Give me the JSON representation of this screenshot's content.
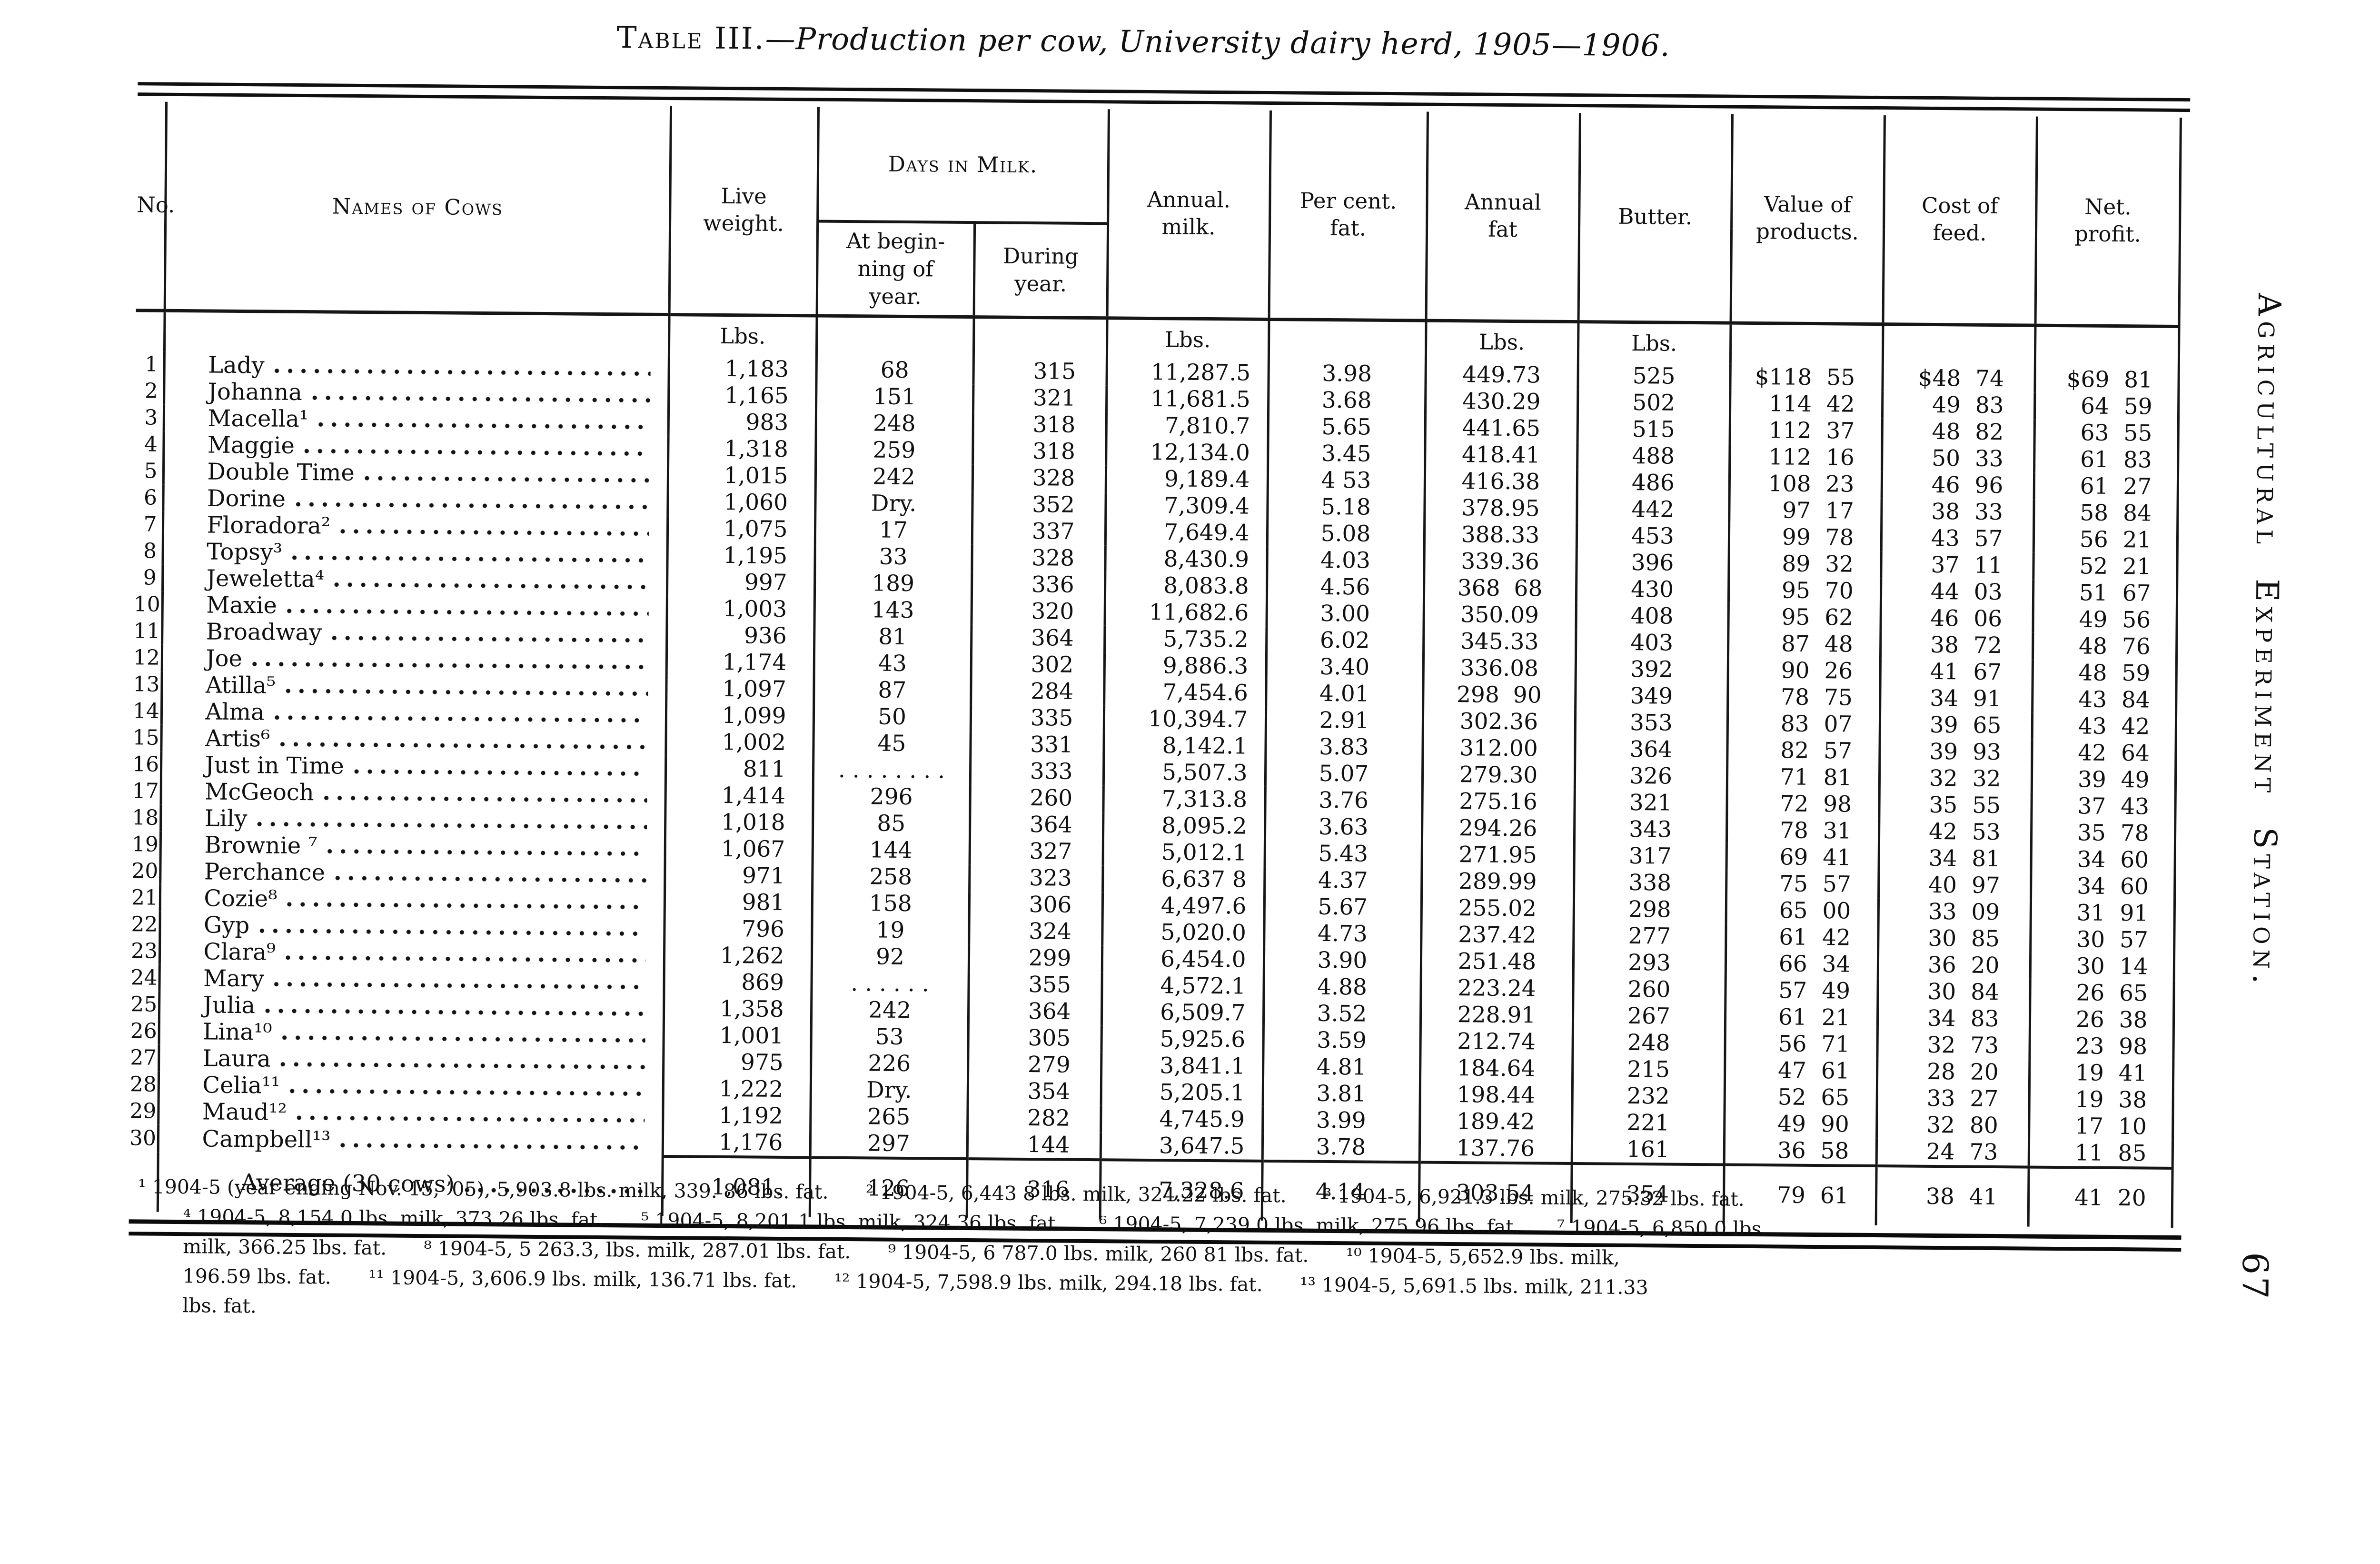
{
  "page": {
    "title_prefix": "Table III.",
    "title_rest": "—Production per cow, University dairy herd, 1905—1906.",
    "side_text": "Agricultural Experiment Station.",
    "page_number": "67"
  },
  "table": {
    "headers": {
      "no": "No.",
      "names": "Names of Cows",
      "live_weight": "Live\nweight.",
      "days_in_milk": "Days in Milk.",
      "at_beginning": "At begin-\nning of\nyear.",
      "during_year": "During\nyear.",
      "annual_milk": "Annual.\nmilk.",
      "per_cent_fat": "Per cent.\nfat.",
      "annual_fat": "Annual\nfat",
      "butter": "Butter.",
      "value_of_products": "Value of\nproducts.",
      "cost_of_feed": "Cost of\nfeed.",
      "net_profit": "Net.\nprofit."
    },
    "unit": "Lbs.",
    "average_label": "Average (30 cows)",
    "rows": [
      {
        "no": "1",
        "name": "Lady",
        "live": "1,183",
        "begin": "68",
        "during": "315",
        "milk": "11,287.5",
        "pct": "3.98",
        "fat": "449.73",
        "butter": "525",
        "value": "$118 55",
        "cost": "$48 74",
        "profit": "$69 81"
      },
      {
        "no": "2",
        "name": "Johanna",
        "live": "1,165",
        "begin": "151",
        "during": "321",
        "milk": "11,681.5",
        "pct": "3.68",
        "fat": "430.29",
        "butter": "502",
        "value": "114 42",
        "cost": "49 83",
        "profit": "64 59"
      },
      {
        "no": "3",
        "name": "Macella¹",
        "live": "983",
        "begin": "248",
        "during": "318",
        "milk": "7,810.7",
        "pct": "5.65",
        "fat": "441.65",
        "butter": "515",
        "value": "112 37",
        "cost": "48 82",
        "profit": "63 55"
      },
      {
        "no": "4",
        "name": "Maggie",
        "live": "1,318",
        "begin": "259",
        "during": "318",
        "milk": "12,134.0",
        "pct": "3.45",
        "fat": "418.41",
        "butter": "488",
        "value": "112 16",
        "cost": "50 33",
        "profit": "61 83"
      },
      {
        "no": "5",
        "name": "Double Time",
        "live": "1,015",
        "begin": "242",
        "during": "328",
        "milk": "9,189.4",
        "pct": "4 53",
        "fat": "416.38",
        "butter": "486",
        "value": "108 23",
        "cost": "46 96",
        "profit": "61 27"
      },
      {
        "no": "6",
        "name": "Dorine",
        "live": "1,060",
        "begin": "Dry.",
        "during": "352",
        "milk": "7,309.4",
        "pct": "5.18",
        "fat": "378.95",
        "butter": "442",
        "value": "97 17",
        "cost": "38 33",
        "profit": "58 84"
      },
      {
        "no": "7",
        "name": "Floradora²",
        "live": "1,075",
        "begin": "17",
        "during": "337",
        "milk": "7,649.4",
        "pct": "5.08",
        "fat": "388.33",
        "butter": "453",
        "value": "99 78",
        "cost": "43 57",
        "profit": "56 21"
      },
      {
        "no": "8",
        "name": "Topsy³",
        "live": "1,195",
        "begin": "33",
        "during": "328",
        "milk": "8,430.9",
        "pct": "4.03",
        "fat": "339.36",
        "butter": "396",
        "value": "89 32",
        "cost": "37 11",
        "profit": "52 21"
      },
      {
        "no": "9",
        "name": "Jeweletta⁴",
        "live": "997",
        "begin": "189",
        "during": "336",
        "milk": "8,083.8",
        "pct": "4.56",
        "fat": "368 68",
        "butter": "430",
        "value": "95 70",
        "cost": "44 03",
        "profit": "51 67"
      },
      {
        "no": "10",
        "name": "Maxie",
        "live": "1,003",
        "begin": "143",
        "during": "320",
        "milk": "11,682.6",
        "pct": "3.00",
        "fat": "350.09",
        "butter": "408",
        "value": "95 62",
        "cost": "46 06",
        "profit": "49 56"
      },
      {
        "no": "11",
        "name": "Broadway",
        "live": "936",
        "begin": "81",
        "during": "364",
        "milk": "5,735.2",
        "pct": "6.02",
        "fat": "345.33",
        "butter": "403",
        "value": "87 48",
        "cost": "38 72",
        "profit": "48 76"
      },
      {
        "no": "12",
        "name": "Joe",
        "live": "1,174",
        "begin": "43",
        "during": "302",
        "milk": "9,886.3",
        "pct": "3.40",
        "fat": "336.08",
        "butter": "392",
        "value": "90 26",
        "cost": "41 67",
        "profit": "48 59"
      },
      {
        "no": "13",
        "name": "Atilla⁵",
        "live": "1,097",
        "begin": "87",
        "during": "284",
        "milk": "7,454.6",
        "pct": "4.01",
        "fat": "298 90",
        "butter": "349",
        "value": "78 75",
        "cost": "34 91",
        "profit": "43 84"
      },
      {
        "no": "14",
        "name": "Alma",
        "live": "1,099",
        "begin": "50",
        "during": "335",
        "milk": "10,394.7",
        "pct": "2.91",
        "fat": "302.36",
        "butter": "353",
        "value": "83 07",
        "cost": "39 65",
        "profit": "43 42"
      },
      {
        "no": "15",
        "name": "Artis⁶",
        "live": "1,002",
        "begin": "45",
        "during": "331",
        "milk": "8,142.1",
        "pct": "3.83",
        "fat": "312.00",
        "butter": "364",
        "value": "82 57",
        "cost": "39 93",
        "profit": "42 64"
      },
      {
        "no": "16",
        "name": "Just in Time",
        "live": "811",
        "begin": ". . . . . . . .",
        "during": "333",
        "milk": "5,507.3",
        "pct": "5.07",
        "fat": "279.30",
        "butter": "326",
        "value": "71 81",
        "cost": "32 32",
        "profit": "39 49"
      },
      {
        "no": "17",
        "name": "McGeoch",
        "live": "1,414",
        "begin": "296",
        "during": "260",
        "milk": "7,313.8",
        "pct": "3.76",
        "fat": "275.16",
        "butter": "321",
        "value": "72 98",
        "cost": "35 55",
        "profit": "37 43"
      },
      {
        "no": "18",
        "name": "Lily",
        "live": "1,018",
        "begin": "85",
        "during": "364",
        "milk": "8,095.2",
        "pct": "3.63",
        "fat": "294.26",
        "butter": "343",
        "value": "78 31",
        "cost": "42 53",
        "profit": "35 78"
      },
      {
        "no": "19",
        "name": "Brownie ⁷",
        "live": "1,067",
        "begin": "144",
        "during": "327",
        "milk": "5,012.1",
        "pct": "5.43",
        "fat": "271.95",
        "butter": "317",
        "value": "69 41",
        "cost": "34 81",
        "profit": "34 60"
      },
      {
        "no": "20",
        "name": "Perchance",
        "live": "971",
        "begin": "258",
        "during": "323",
        "milk": "6,637 8",
        "pct": "4.37",
        "fat": "289.99",
        "butter": "338",
        "value": "75 57",
        "cost": "40 97",
        "profit": "34 60"
      },
      {
        "no": "21",
        "name": "Cozie⁸",
        "live": "981",
        "begin": "158",
        "during": "306",
        "milk": "4,497.6",
        "pct": "5.67",
        "fat": "255.02",
        "butter": "298",
        "value": "65 00",
        "cost": "33 09",
        "profit": "31 91"
      },
      {
        "no": "22",
        "name": "Gyp",
        "live": "796",
        "begin": "19",
        "during": "324",
        "milk": "5,020.0",
        "pct": "4.73",
        "fat": "237.42",
        "butter": "277",
        "value": "61 42",
        "cost": "30 85",
        "profit": "30 57"
      },
      {
        "no": "23",
        "name": "Clara⁹",
        "live": "1,262",
        "begin": "92",
        "during": "299",
        "milk": "6,454.0",
        "pct": "3.90",
        "fat": "251.48",
        "butter": "293",
        "value": "66 34",
        "cost": "36 20",
        "profit": "30 14"
      },
      {
        "no": "24",
        "name": "Mary",
        "live": "869",
        "begin": ". . .   . . .",
        "during": "355",
        "milk": "4,572.1",
        "pct": "4.88",
        "fat": "223.24",
        "butter": "260",
        "value": "57 49",
        "cost": "30 84",
        "profit": "26 65"
      },
      {
        "no": "25",
        "name": "Julia",
        "live": "1,358",
        "begin": "242",
        "during": "364",
        "milk": "6,509.7",
        "pct": "3.52",
        "fat": "228.91",
        "butter": "267",
        "value": "61 21",
        "cost": "34 83",
        "profit": "26 38"
      },
      {
        "no": "26",
        "name": "Lina¹⁰",
        "live": "1,001",
        "begin": "53",
        "during": "305",
        "milk": "5,925.6",
        "pct": "3.59",
        "fat": "212.74",
        "butter": "248",
        "value": "56 71",
        "cost": "32 73",
        "profit": "23 98"
      },
      {
        "no": "27",
        "name": "Laura",
        "live": "975",
        "begin": "226",
        "during": "279",
        "milk": "3,841.1",
        "pct": "4.81",
        "fat": "184.64",
        "butter": "215",
        "value": "47 61",
        "cost": "28 20",
        "profit": "19 41"
      },
      {
        "no": "28",
        "name": "Celia¹¹",
        "live": "1,222",
        "begin": "Dry.",
        "during": "354",
        "milk": "5,205.1",
        "pct": "3.81",
        "fat": "198.44",
        "butter": "232",
        "value": "52 65",
        "cost": "33 27",
        "profit": "19 38"
      },
      {
        "no": "29",
        "name": "Maud¹²",
        "live": "1,192",
        "begin": "265",
        "during": "282",
        "milk": "4,745.9",
        "pct": "3.99",
        "fat": "189.42",
        "butter": "221",
        "value": "49 90",
        "cost": "32 80",
        "profit": "17 10"
      },
      {
        "no": "30",
        "name": "Campbell¹³",
        "live": "1,176",
        "begin": "297",
        "during": "144",
        "milk": "3,647.5",
        "pct": "3.78",
        "fat": "137.76",
        "butter": "161",
        "value": "36 58",
        "cost": "24 73",
        "profit": "11 85"
      }
    ],
    "average": {
      "live": "1,081.",
      "begin": "126",
      "during": "316",
      "milk": "7,328.6",
      "pct": "4.14",
      "fat": "303.54",
      "butter": "354",
      "value": "79 61",
      "cost": "38 41",
      "profit": "41 20"
    }
  },
  "footnotes": [
    "¹ 1904-5 (year ending Nov. 15, ’05), 5,903.8 lbs. milk, 339. 86 lbs. fat.      ² 1904-5, 6,443 8 lbs. milk, 324.22 lbs. fat.      ³ 1904-5, 6,921.3 lbs. milk, 275.32 lbs. fat.",
    "⁴ 1904-5, 8,154.0 lbs. milk, 373.26 lbs. fat.      ⁵ 1904-5, 8,201.1 lbs. milk, 324 36 lbs. fat.      ⁶ 1904-5, 7,239 0 lbs. milk, 275.96 lbs. fat.      ⁷ 1904-5, 6,850.0 lbs.",
    "milk, 366.25 lbs. fat.      ⁸ 1904-5, 5 263.3, lbs. milk, 287.01 lbs. fat.      ⁹ 1904-5, 6 787.0 lbs. milk, 260 81 lbs. fat.      ¹⁰ 1904-5, 5,652.9 lbs. milk,",
    "196.59 lbs. fat.      ¹¹ 1904-5, 3,606.9 lbs. milk, 136.71 lbs. fat.      ¹² 1904-5, 7,598.9 lbs. milk, 294.18 lbs. fat.      ¹³ 1904-5, 5,691.5 lbs. milk, 211.33",
    "lbs. fat."
  ]
}
